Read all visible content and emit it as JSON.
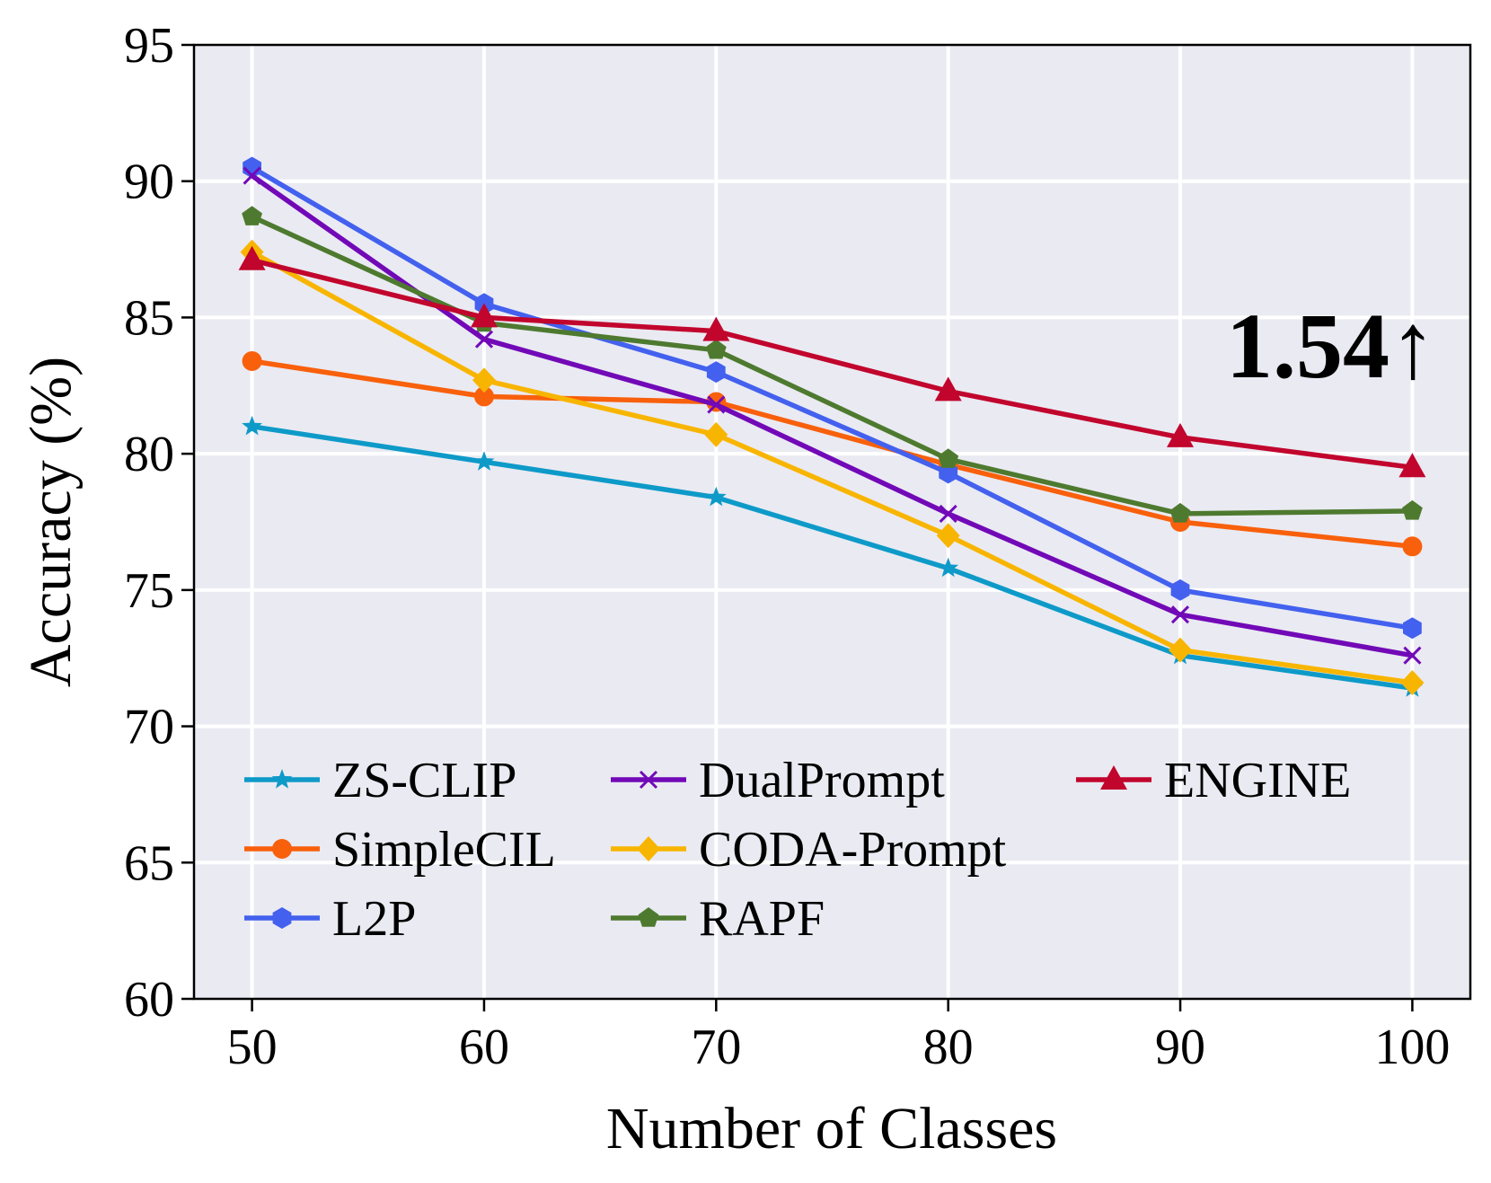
{
  "chart_data": {
    "type": "line",
    "title": "",
    "xlabel": "Number of Classes",
    "ylabel": "Accuracy (%)",
    "x": [
      50,
      60,
      70,
      80,
      90,
      100
    ],
    "xticks": [
      "50",
      "60",
      "70",
      "80",
      "90",
      "100"
    ],
    "xlim": [
      47.5,
      102.5
    ],
    "ylim": [
      60,
      95
    ],
    "yticks": [
      "60",
      "65",
      "70",
      "75",
      "80",
      "85",
      "90",
      "95"
    ],
    "grid": true,
    "background": "#eaeaf2",
    "legend_position": "lower-left",
    "annotation": {
      "text": "1.54↑",
      "x": 96.5,
      "y": 84
    },
    "series": [
      {
        "name": "ZS-CLIP",
        "color": "#0e9ac8",
        "marker": "star",
        "values": [
          81.0,
          79.7,
          78.4,
          75.8,
          72.6,
          71.4
        ]
      },
      {
        "name": "SimpleCIL",
        "color": "#f8600c",
        "marker": "circle",
        "values": [
          83.4,
          82.1,
          81.9,
          79.6,
          77.5,
          76.6
        ]
      },
      {
        "name": "L2P",
        "color": "#4361ee",
        "marker": "hexagon",
        "values": [
          90.5,
          85.5,
          83.0,
          79.3,
          75.0,
          73.6
        ]
      },
      {
        "name": "DualPrompt",
        "color": "#7209b7",
        "marker": "x",
        "values": [
          90.2,
          84.2,
          81.8,
          77.8,
          74.1,
          72.6
        ]
      },
      {
        "name": "CODA-Prompt",
        "color": "#f8b500",
        "marker": "diamond",
        "values": [
          87.4,
          82.7,
          80.7,
          77.0,
          72.8,
          71.6
        ]
      },
      {
        "name": "RAPF",
        "color": "#4e7a2f",
        "marker": "pentagon",
        "values": [
          88.7,
          84.8,
          83.8,
          79.8,
          77.8,
          77.9
        ]
      },
      {
        "name": "ENGINE",
        "color": "#c1052d",
        "marker": "triangle",
        "values": [
          87.1,
          85.0,
          84.5,
          82.3,
          80.6,
          79.5
        ]
      }
    ]
  }
}
